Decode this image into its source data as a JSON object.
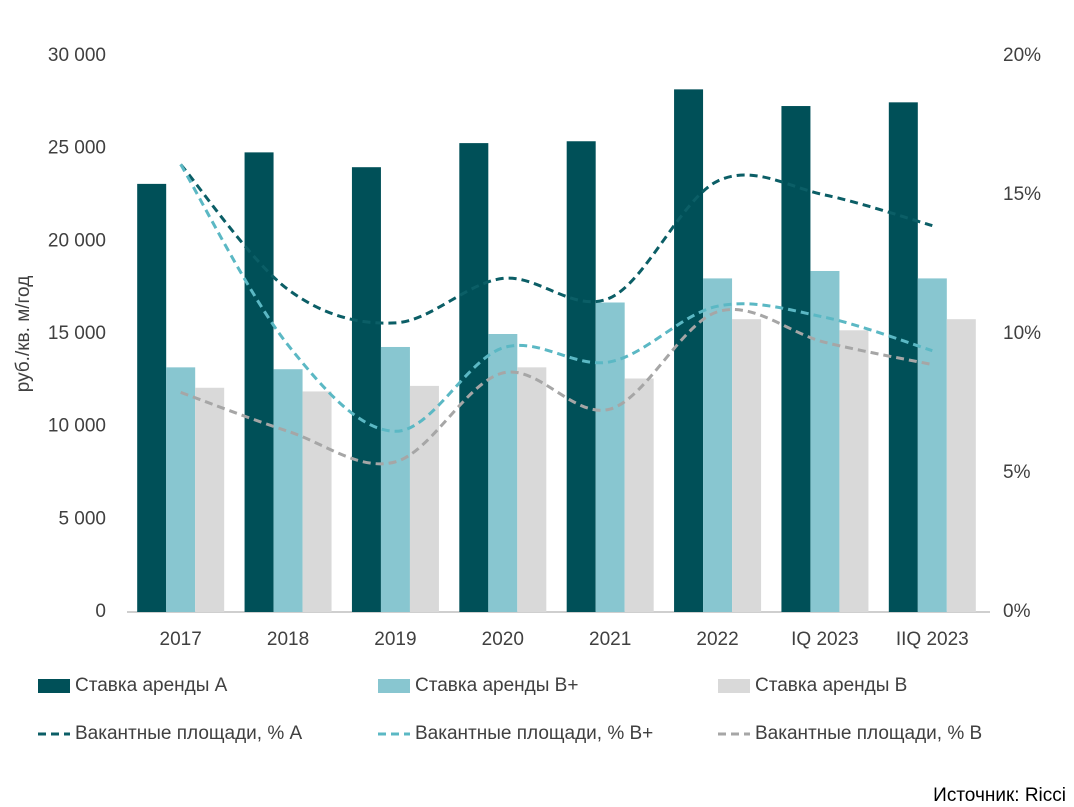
{
  "chart_data": {
    "type": "bar",
    "categories": [
      "2017",
      "2018",
      "2019",
      "2020",
      "2021",
      "2022",
      "IQ 2023",
      "IIQ 2023"
    ],
    "series": [
      {
        "name": "Ставка аренды А",
        "type": "bar",
        "color": "#005058",
        "values": [
          23100,
          24800,
          24000,
          25300,
          25400,
          28200,
          27300,
          27500
        ]
      },
      {
        "name": "Ставка аренды В+",
        "type": "bar",
        "color": "#88c6d0",
        "values": [
          13200,
          13100,
          14300,
          15000,
          16700,
          18000,
          18400,
          18000
        ]
      },
      {
        "name": "Ставка аренды В",
        "type": "bar",
        "color": "#d9d9d9",
        "values": [
          12100,
          11900,
          12200,
          13200,
          12600,
          15800,
          15200,
          15800
        ]
      },
      {
        "name": "Вакантные площади, % А",
        "type": "line",
        "axis": "y2",
        "color": "#0b5e66",
        "values": [
          16.1,
          11.6,
          10.4,
          12.0,
          11.3,
          15.5,
          15.0,
          13.9
        ]
      },
      {
        "name": "Вакантные площади, % В+",
        "type": "line",
        "axis": "y2",
        "color": "#5bb8c4",
        "values": [
          16.1,
          9.6,
          6.5,
          9.5,
          9.0,
          11.0,
          10.6,
          9.4
        ]
      },
      {
        "name": "Вакантные площади, % В",
        "type": "line",
        "axis": "y2",
        "color": "#a6a6a6",
        "values": [
          7.9,
          6.5,
          5.4,
          8.6,
          7.3,
          10.8,
          9.7,
          8.9
        ]
      }
    ],
    "y_label": "руб./кв. м/год",
    "ylim": [
      0,
      30000
    ],
    "yticks": [
      0,
      {
        "value": 5000,
        "label": "5 000"
      },
      {
        "value": 10000,
        "label": "10 000"
      },
      {
        "value": 15000,
        "label": "15 000"
      },
      {
        "value": 20000,
        "label": "20 000"
      },
      {
        "value": 25000,
        "label": "25 000"
      },
      {
        "value": 30000,
        "label": "30 000"
      }
    ],
    "y2lim": [
      0,
      20
    ],
    "y2ticks": [
      {
        "value": 0,
        "label": "0%"
      },
      {
        "value": 5,
        "label": "5%"
      },
      {
        "value": 10,
        "label": "10%"
      },
      {
        "value": 15,
        "label": "15%"
      },
      {
        "value": 20,
        "label": "20%"
      }
    ],
    "legend": "bottom",
    "source": "Источник: Ricci"
  }
}
